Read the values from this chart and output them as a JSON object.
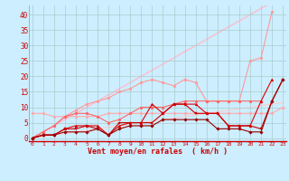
{
  "x": [
    0,
    1,
    2,
    3,
    4,
    5,
    6,
    7,
    8,
    9,
    10,
    11,
    12,
    13,
    14,
    15,
    16,
    17,
    18,
    19,
    20,
    21,
    22,
    23
  ],
  "line_lightest_diag": [
    0,
    2,
    4,
    6,
    8,
    10,
    12,
    14,
    16,
    18,
    20,
    22,
    24,
    26,
    28,
    30,
    32,
    34,
    36,
    38,
    40,
    42,
    44,
    46
  ],
  "line_light_diag": [
    0,
    0.5,
    1,
    1.5,
    2,
    2.5,
    3,
    3.5,
    4,
    4.5,
    5,
    5.5,
    6,
    6.5,
    7,
    7.5,
    8,
    8.5,
    9,
    9.5,
    10,
    10.5,
    11,
    11.5
  ],
  "line_flat_light": [
    8,
    8,
    7,
    7,
    7,
    7,
    7,
    8,
    8,
    8,
    8,
    8,
    8,
    8,
    8,
    8,
    8,
    8,
    8,
    8,
    8,
    8,
    8,
    10
  ],
  "line_pink_wavy": [
    0,
    2,
    4,
    7,
    9,
    11,
    12,
    13,
    15,
    16,
    18,
    19,
    18,
    17,
    19,
    18,
    12,
    12,
    12,
    12,
    25,
    26,
    41,
    null
  ],
  "line_med_wavy": [
    0,
    2,
    4,
    7,
    8,
    8,
    7,
    5,
    6,
    8,
    10,
    10,
    10,
    11,
    12,
    12,
    12,
    12,
    12,
    12,
    12,
    12,
    null,
    null
  ],
  "line_dark1": [
    0,
    1,
    1,
    3,
    4,
    4,
    4,
    1,
    4,
    5,
    5,
    11,
    8,
    11,
    11,
    11,
    8,
    8,
    4,
    4,
    4,
    12,
    19,
    null
  ],
  "line_dark2": [
    0,
    1,
    1,
    3,
    3,
    4,
    3,
    1,
    5,
    5,
    5,
    5,
    8,
    11,
    11,
    8,
    8,
    8,
    4,
    4,
    4,
    3,
    12,
    19
  ],
  "line_darkest": [
    0,
    1,
    1,
    2,
    2,
    2,
    3,
    1,
    3,
    4,
    4,
    4,
    6,
    6,
    6,
    6,
    6,
    3,
    3,
    3,
    2,
    2,
    12,
    19
  ],
  "background": "#cceeff",
  "grid_color": "#aacccc",
  "xlabel": "Vent moyen/en rafales  ( km/h )",
  "ylabel_ticks": [
    0,
    5,
    10,
    15,
    20,
    25,
    30,
    35,
    40
  ],
  "xlim": [
    -0.3,
    23.3
  ],
  "ylim": [
    -1,
    43
  ]
}
